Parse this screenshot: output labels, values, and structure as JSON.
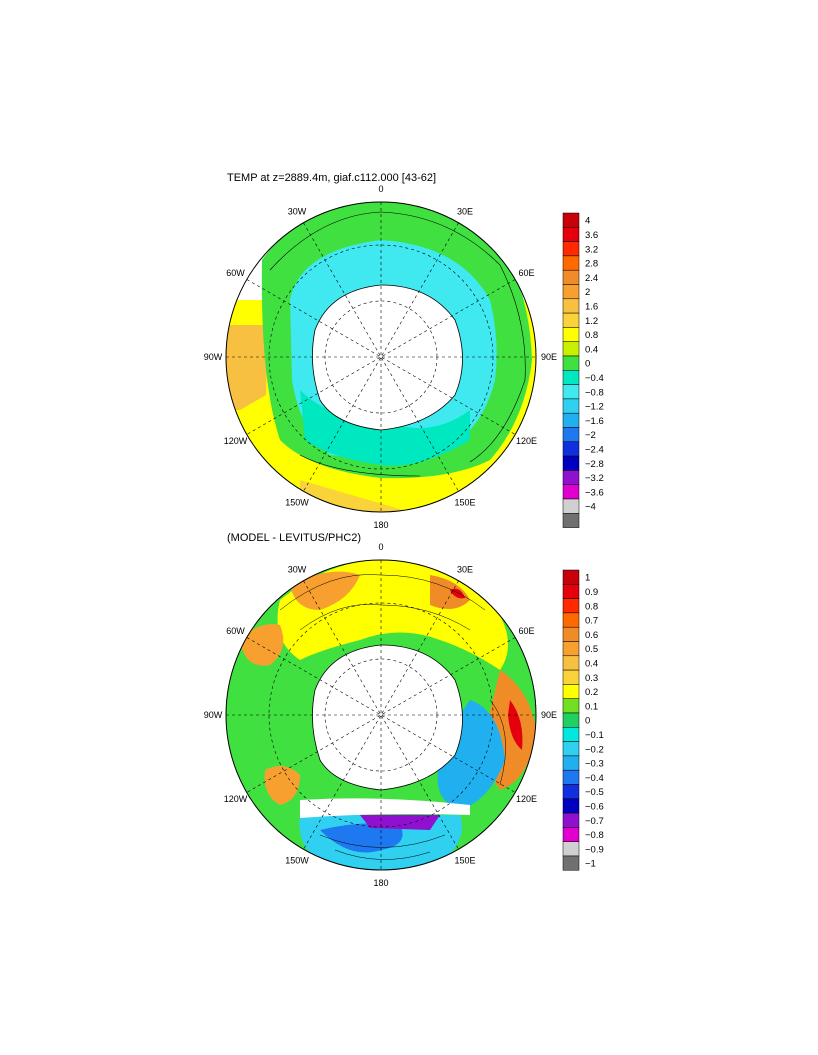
{
  "panels": [
    {
      "title": "TEMP at z=2889.4m, giaf.c112.000 [43-62]",
      "meridians": [
        "0",
        "30E",
        "60E",
        "90E",
        "120E",
        "150E",
        "180",
        "150W",
        "120W",
        "90W",
        "60W",
        "30W"
      ],
      "colorbar": {
        "labels": [
          "4",
          "3.6",
          "3.2",
          "2.8",
          "2.4",
          "2",
          "1.6",
          "1.2",
          "0.8",
          "0.4",
          "0",
          "−0.4",
          "−0.8",
          "−1.2",
          "−1.6",
          "−2",
          "−2.4",
          "−2.8",
          "−3.2",
          "−3.6",
          "−4"
        ],
        "colors": [
          "#c8000a",
          "#e4000c",
          "#ff2a00",
          "#ff6a00",
          "#f08c28",
          "#f7a030",
          "#f8c040",
          "#fad23a",
          "#ffff00",
          "#c8f000",
          "#40e040",
          "#00e8c0",
          "#40e8f0",
          "#30d0f0",
          "#20b0f0",
          "#1e78f0",
          "#1030e0",
          "#0000c0",
          "#9010d0",
          "#e000d0",
          "#d0d0d0",
          "#707070"
        ]
      }
    },
    {
      "title": "(MODEL - LEVITUS/PHC2)",
      "meridians": [
        "0",
        "30E",
        "60E",
        "90E",
        "120E",
        "150E",
        "180",
        "150W",
        "120W",
        "90W",
        "60W",
        "30W"
      ],
      "colorbar": {
        "labels": [
          "1",
          "0.9",
          "0.8",
          "0.7",
          "0.6",
          "0.5",
          "0.4",
          "0.3",
          "0.2",
          "0.1",
          "0",
          "−0.1",
          "−0.2",
          "−0.3",
          "−0.4",
          "−0.5",
          "−0.6",
          "−0.7",
          "−0.8",
          "−0.9",
          "−1"
        ],
        "colors": [
          "#c8000a",
          "#e4000c",
          "#ff2a00",
          "#ff6a00",
          "#f08c28",
          "#f7a030",
          "#f8c040",
          "#fad23a",
          "#ffff00",
          "#70e020",
          "#20d060",
          "#00e8e0",
          "#30d0f0",
          "#20b0f0",
          "#1e78f0",
          "#1030e0",
          "#0000c0",
          "#9010d0",
          "#e000d0",
          "#d0d0d0",
          "#707070"
        ]
      }
    }
  ]
}
